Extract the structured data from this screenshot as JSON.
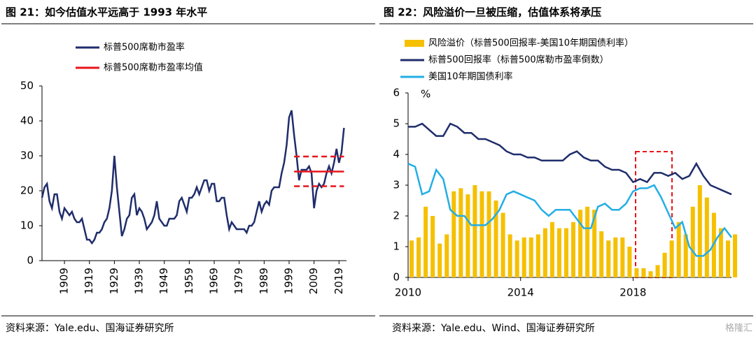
{
  "chart_data": [
    {
      "type": "line",
      "title": "图 21：如今估值水平远高于 1993 年水平",
      "source": "资料来源：Yale.edu、国海证券研究所",
      "x": [
        1900,
        1901,
        1902,
        1903,
        1904,
        1905,
        1906,
        1907,
        1908,
        1909,
        1910,
        1911,
        1912,
        1913,
        1914,
        1915,
        1916,
        1917,
        1918,
        1919,
        1920,
        1921,
        1922,
        1923,
        1924,
        1925,
        1926,
        1927,
        1928,
        1929,
        1930,
        1931,
        1932,
        1933,
        1934,
        1935,
        1936,
        1937,
        1938,
        1939,
        1940,
        1941,
        1942,
        1943,
        1944,
        1945,
        1946,
        1947,
        1948,
        1949,
        1950,
        1951,
        1952,
        1953,
        1954,
        1955,
        1956,
        1957,
        1958,
        1959,
        1960,
        1961,
        1962,
        1963,
        1964,
        1965,
        1966,
        1967,
        1968,
        1969,
        1970,
        1971,
        1972,
        1973,
        1974,
        1975,
        1976,
        1977,
        1978,
        1979,
        1980,
        1981,
        1982,
        1983,
        1984,
        1985,
        1986,
        1987,
        1988,
        1989,
        1990,
        1991,
        1992,
        1993,
        1994,
        1995,
        1996,
        1997,
        1998,
        1999,
        2000,
        2001,
        2002,
        2003,
        2004,
        2005,
        2006,
        2007,
        2008,
        2009,
        2010,
        2011,
        2012,
        2013,
        2014,
        2015,
        2016,
        2017,
        2018,
        2019,
        2020,
        2021
      ],
      "series": [
        {
          "name": "标普500席勒市盈率",
          "color": "#1f2d6b",
          "values": [
            18,
            21,
            22,
            17,
            15,
            19,
            19,
            14,
            12,
            15,
            14,
            13,
            14,
            12,
            11,
            11,
            12,
            9,
            6,
            6,
            5,
            6,
            8,
            8,
            9,
            11,
            12,
            15,
            20,
            30,
            21,
            14,
            7,
            9,
            12,
            13,
            18,
            19,
            13,
            15,
            14,
            12,
            9,
            10,
            11,
            13,
            17,
            12,
            11,
            10,
            10,
            12,
            12,
            12,
            13,
            17,
            18,
            16,
            14,
            18,
            18,
            19,
            21,
            19,
            21,
            23,
            23,
            20,
            22,
            22,
            17,
            17,
            18,
            18,
            13,
            9,
            11,
            10,
            9,
            9,
            9,
            9,
            8,
            10,
            10,
            11,
            14,
            17,
            14,
            16,
            17,
            16,
            20,
            21,
            21,
            21,
            25,
            28,
            33,
            41,
            43,
            36,
            30,
            23,
            26,
            26,
            26,
            27,
            25,
            15,
            20,
            22,
            21,
            22,
            25,
            27,
            25,
            28,
            32,
            28,
            31,
            38
          ]
        },
        {
          "name": "标普500席勒市盈率均值",
          "color": "#e8141b",
          "x": [
            2001,
            2021
          ],
          "values": [
            25.5,
            25.5
          ]
        }
      ],
      "dashed_lines": [
        {
          "color": "#e8141b",
          "x": [
            2001,
            2021
          ],
          "values": [
            29.8,
            29.8
          ]
        },
        {
          "color": "#e8141b",
          "x": [
            2001,
            2021
          ],
          "values": [
            21.3,
            21.3
          ]
        }
      ],
      "xlim": [
        1900,
        2022
      ],
      "xticks": [
        1909,
        1919,
        1929,
        1939,
        1949,
        1959,
        1969,
        1979,
        1989,
        1999,
        2009,
        2019
      ],
      "ylim": [
        0,
        50
      ],
      "yticks": [
        0,
        10,
        20,
        30,
        40,
        50
      ]
    },
    {
      "type": "combo",
      "title": "图 22：风险溢价一旦被压缩，估值体系将承压",
      "source": "资料来源：Yale.edu、Wind、国海证券研究所",
      "y_label": "%",
      "x": [
        2010,
        2010.25,
        2010.5,
        2010.75,
        2011,
        2011.25,
        2011.5,
        2011.75,
        2012,
        2012.25,
        2012.5,
        2012.75,
        2013,
        2013.25,
        2013.5,
        2013.75,
        2014,
        2014.25,
        2014.5,
        2014.75,
        2015,
        2015.25,
        2015.5,
        2015.75,
        2016,
        2016.25,
        2016.5,
        2016.75,
        2017,
        2017.25,
        2017.5,
        2017.75,
        2018,
        2018.25,
        2018.5,
        2018.75,
        2019,
        2019.25,
        2019.5,
        2019.75,
        2020,
        2020.25,
        2020.5,
        2020.75,
        2021,
        2021.25,
        2021.5
      ],
      "series": [
        {
          "name": "风险溢价（标普500回报率-美国10年期国债利率）",
          "type": "bar",
          "color": "#f5c000",
          "values": [
            1.2,
            1.3,
            2.3,
            2.0,
            1.1,
            1.4,
            2.8,
            2.9,
            2.7,
            3.0,
            2.8,
            2.8,
            2.5,
            2.1,
            1.4,
            1.2,
            1.3,
            1.3,
            1.4,
            1.6,
            1.8,
            1.6,
            1.6,
            1.8,
            2.2,
            2.3,
            2.2,
            1.5,
            1.2,
            1.3,
            1.3,
            1.0,
            0.3,
            0.3,
            0.2,
            0.4,
            0.8,
            1.2,
            1.8,
            1.4,
            2.3,
            3.0,
            2.6,
            2.1,
            1.6,
            1.2,
            1.4
          ]
        },
        {
          "name": "标普500回报率（标普500席勒市盈率倒数）",
          "type": "line",
          "color": "#1f2d6b",
          "values": [
            4.9,
            4.9,
            5.0,
            4.8,
            4.6,
            4.6,
            5.0,
            4.9,
            4.7,
            4.7,
            4.5,
            4.5,
            4.4,
            4.3,
            4.1,
            4.0,
            4.0,
            3.9,
            3.9,
            3.8,
            3.8,
            3.8,
            3.8,
            4.0,
            4.1,
            3.9,
            3.8,
            3.8,
            3.6,
            3.5,
            3.5,
            3.4,
            3.1,
            3.2,
            3.1,
            3.4,
            3.4,
            3.3,
            3.4,
            3.2,
            3.3,
            3.7,
            3.3,
            3.0,
            2.9,
            2.8,
            2.7
          ]
        },
        {
          "name": "美国10年期国债利率",
          "type": "line",
          "color": "#23aee5",
          "values": [
            3.7,
            3.6,
            2.7,
            2.8,
            3.5,
            3.2,
            2.2,
            2.0,
            2.0,
            1.7,
            1.7,
            1.7,
            1.9,
            2.2,
            2.7,
            2.8,
            2.7,
            2.6,
            2.5,
            2.2,
            2.0,
            2.2,
            2.2,
            2.2,
            1.9,
            1.6,
            1.6,
            2.3,
            2.4,
            2.2,
            2.2,
            2.4,
            2.8,
            2.9,
            2.9,
            3.0,
            2.6,
            2.1,
            1.6,
            1.8,
            1.0,
            0.7,
            0.7,
            0.9,
            1.3,
            1.6,
            1.3
          ]
        }
      ],
      "xlim": [
        2010,
        2021.5
      ],
      "xticks": [
        2010,
        2014,
        2018
      ],
      "ylim": [
        0,
        6
      ],
      "yticks": [
        0,
        1,
        2,
        3,
        4,
        5,
        6
      ]
    }
  ],
  "watermark": "格隆汇"
}
